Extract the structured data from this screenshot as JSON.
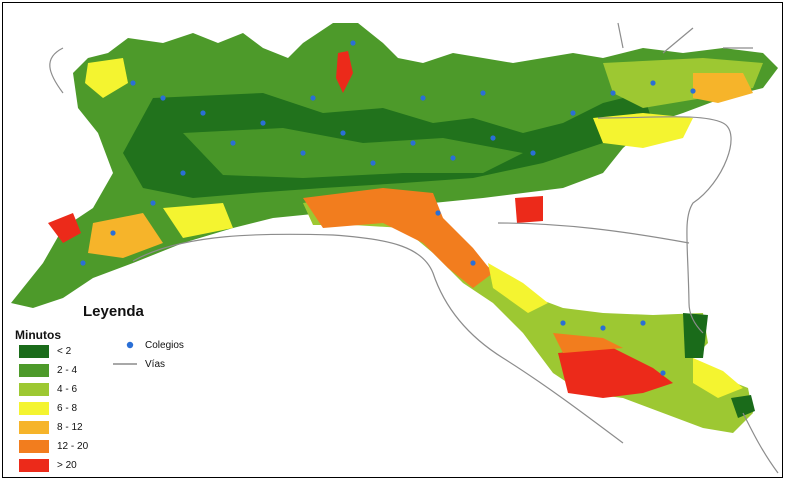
{
  "legend": {
    "title": "Leyenda",
    "classes_title": "Minutos",
    "classes": [
      {
        "label": "< 2",
        "color": "#1a6b1a"
      },
      {
        "label": "2 - 4",
        "color": "#4d9a2a"
      },
      {
        "label": "4 - 6",
        "color": "#9dc832"
      },
      {
        "label": "6 - 8",
        "color": "#f4f430"
      },
      {
        "label": "8 - 12",
        "color": "#f6b42a"
      },
      {
        "label": "12 - 20",
        "color": "#f27d1e"
      },
      {
        "label": "> 20",
        "color": "#ec2a1a"
      }
    ],
    "symbols": [
      {
        "label": "Colegios",
        "color": "#2a6fd6",
        "icon": "school-point-icon"
      },
      {
        "label": "Vías",
        "color": "#8c8c8c",
        "icon": "road-line-icon"
      }
    ]
  },
  "colors": {
    "road": "#8c8c8c",
    "school": "#2a6fd6",
    "background": "#ffffff"
  }
}
